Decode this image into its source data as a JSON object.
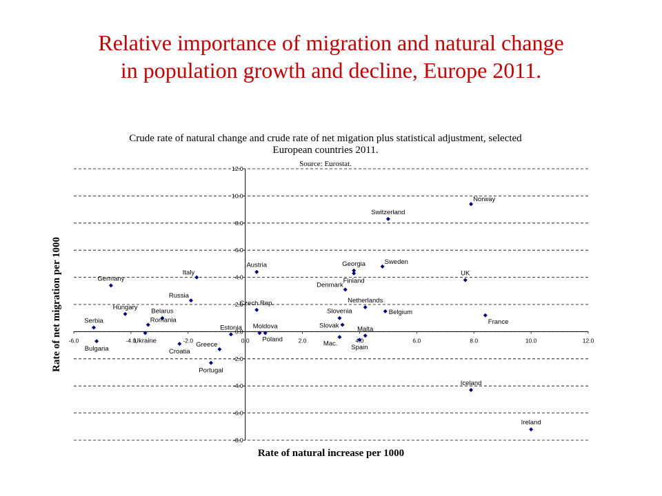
{
  "slide": {
    "title_line1": "Relative importance of migration and natural change",
    "title_line2": "in population growth and decline, Europe 2011."
  },
  "chart_data": {
    "type": "scatter",
    "title": "Crude rate of natural change and crude rate of net migation plus statistical adjustment, selected European countries 2011.",
    "title_line1": "Crude rate of natural change and crude rate of net migation plus statistical adjustment, selected",
    "title_line2": "European countries 2011.",
    "subtitle": "Source: Eurostat.",
    "xlabel": "Rate of natural increase per 1000",
    "ylabel": "Rate of net migration per 1000",
    "xlim": [
      -6,
      12
    ],
    "ylim": [
      -8,
      12
    ],
    "xticks": [
      "-6.0",
      "-4.0",
      "-2.0",
      "0.0",
      "2.0",
      "4.0",
      "6.0",
      "8.0",
      "10.0",
      "12.0"
    ],
    "yticks": [
      "12.0",
      "10.0",
      "8.0",
      "6.0",
      "4.0",
      "2.0",
      "0.0",
      "-2.0",
      "-4.0",
      "-6.0",
      "-8.0"
    ],
    "grid": "horizontal dashed",
    "marker_color": "#000080",
    "points": [
      {
        "label": "Norway",
        "x": 7.9,
        "y": 9.4,
        "lpos": "ne"
      },
      {
        "label": "Switzerland",
        "x": 5.0,
        "y": 8.3,
        "lpos": "n"
      },
      {
        "label": "Sweden",
        "x": 4.8,
        "y": 4.8,
        "lpos": "ne"
      },
      {
        "label": "Georgia",
        "x": 3.8,
        "y": 4.5,
        "lpos": "n"
      },
      {
        "label": "Austria",
        "x": 0.4,
        "y": 4.4,
        "lpos": "n"
      },
      {
        "label": "Finland",
        "x": 3.8,
        "y": 4.3,
        "lpos": "s"
      },
      {
        "label": "UK",
        "x": 7.7,
        "y": 3.8,
        "lpos": "n"
      },
      {
        "label": "Italy",
        "x": -1.7,
        "y": 4.0,
        "lpos": "nw"
      },
      {
        "label": "Germany",
        "x": -4.7,
        "y": 3.4,
        "lpos": "n"
      },
      {
        "label": "Denmark",
        "x": 3.5,
        "y": 3.1,
        "lpos": "nw"
      },
      {
        "label": "Russia",
        "x": -1.9,
        "y": 2.3,
        "lpos": "nw"
      },
      {
        "label": "Czech Rep.",
        "x": 0.4,
        "y": 1.6,
        "lpos": "n"
      },
      {
        "label": "Netherlands",
        "x": 4.2,
        "y": 1.8,
        "lpos": "n"
      },
      {
        "label": "Slovenia",
        "x": 3.3,
        "y": 1.0,
        "lpos": "n"
      },
      {
        "label": "Belgium",
        "x": 4.9,
        "y": 1.5,
        "lpos": "e"
      },
      {
        "label": "France",
        "x": 8.4,
        "y": 1.2,
        "lpos": "se"
      },
      {
        "label": "Hungary",
        "x": -4.2,
        "y": 1.3,
        "lpos": "n"
      },
      {
        "label": "Serbia",
        "x": -5.3,
        "y": 0.3,
        "lpos": "n"
      },
      {
        "label": "Belarus",
        "x": -2.9,
        "y": 1.0,
        "lpos": "n"
      },
      {
        "label": "Romania",
        "x": -3.4,
        "y": 0.5,
        "lpos": "ne"
      },
      {
        "label": "Estonia",
        "x": -0.5,
        "y": -0.2,
        "lpos": "n"
      },
      {
        "label": "Moldova",
        "x": 0.7,
        "y": -0.1,
        "lpos": "n"
      },
      {
        "label": "Slovak",
        "x": 3.4,
        "y": 0.5,
        "lpos": "w"
      },
      {
        "label": "Malta",
        "x": 4.2,
        "y": -0.3,
        "lpos": "n"
      },
      {
        "label": "Poland",
        "x": 0.5,
        "y": -0.1,
        "lpos": "se"
      },
      {
        "label": "Mac.",
        "x": 3.3,
        "y": -0.4,
        "lpos": "sw"
      },
      {
        "label": "Spain",
        "x": 4.0,
        "y": -0.6,
        "lpos": "s"
      },
      {
        "label": "Ukraine",
        "x": -3.5,
        "y": -0.1,
        "lpos": "s"
      },
      {
        "label": "Bulgaria",
        "x": -5.2,
        "y": -0.7,
        "lpos": "s"
      },
      {
        "label": "Croatia",
        "x": -2.3,
        "y": -0.9,
        "lpos": "s"
      },
      {
        "label": "Greece",
        "x": -0.9,
        "y": -1.3,
        "lpos": "nw"
      },
      {
        "label": "Portugal",
        "x": -1.2,
        "y": -2.3,
        "lpos": "s"
      },
      {
        "label": "Iceland",
        "x": 7.9,
        "y": -4.3,
        "lpos": "n"
      },
      {
        "label": "Ireland",
        "x": 10.0,
        "y": -7.2,
        "lpos": "n"
      }
    ]
  }
}
